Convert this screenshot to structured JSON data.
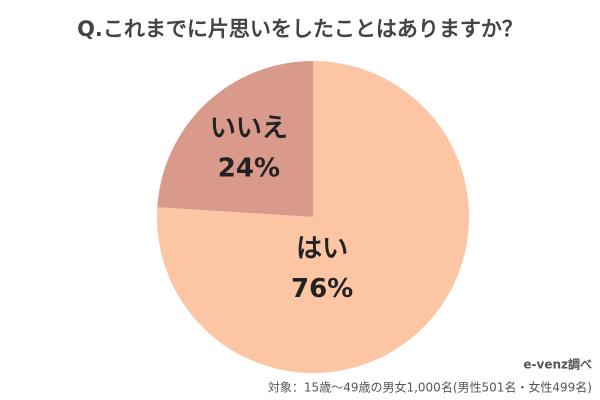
{
  "chart_data": {
    "type": "pie",
    "title": "Q.これまでに片思いをしたことはありますか？",
    "categories": [
      "はい",
      "いいえ"
    ],
    "values": [
      76,
      24
    ],
    "value_labels": [
      "76%",
      "24%"
    ],
    "colors": [
      "#fcc6a4",
      "#d99a8b"
    ],
    "source": "e-venz調べ",
    "note": "対象：15歳〜49歳の男女1,000名(男性501名・女性499名)"
  }
}
